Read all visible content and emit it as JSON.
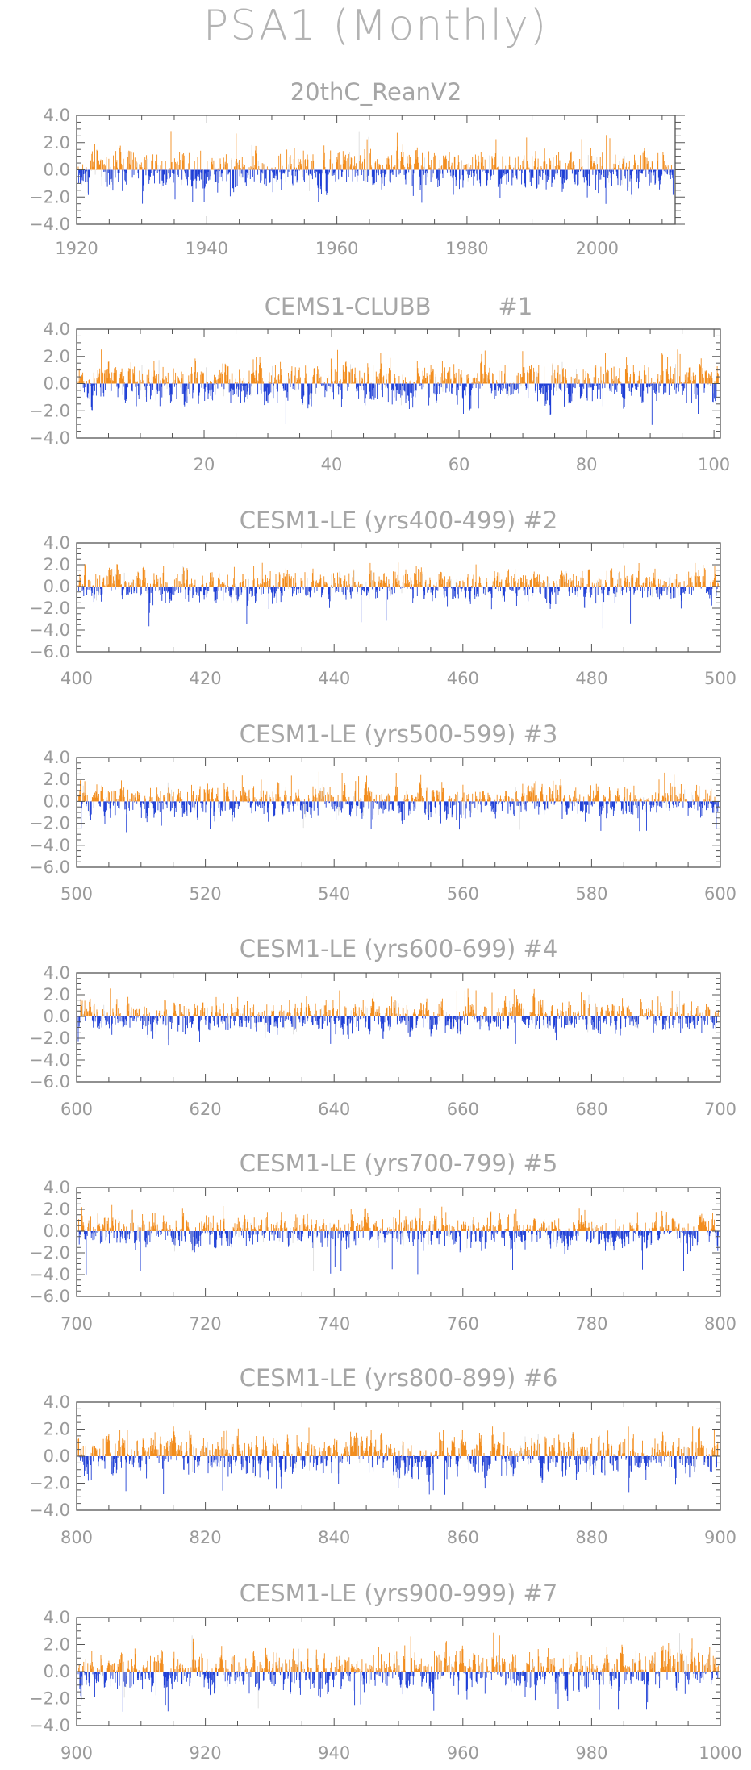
{
  "page": {
    "title": "PSA1 (Monthly)",
    "colors": {
      "positive": "#f28c1c",
      "negative": "#1f3fd6",
      "frame": "#555555",
      "text": "#999999"
    }
  },
  "chart_data": [
    {
      "type": "bar",
      "title": "20thC_ReanV2",
      "xlim": [
        1920,
        2012
      ],
      "ylim": [
        -4,
        4
      ],
      "xticks": [
        1920,
        1940,
        1960,
        1980,
        2000
      ],
      "yticks": [
        -4,
        -2,
        0,
        2,
        4
      ],
      "ytick_labels": [
        "−4.0",
        "−2.0",
        "0.0",
        "2.0",
        "4.0"
      ],
      "approx_peak": 2.8,
      "approx_trough": -2.7
    },
    {
      "type": "bar",
      "title": "CEMS1-CLUBB         #1",
      "xlim": [
        0,
        101
      ],
      "ylim": [
        -4,
        4
      ],
      "xticks": [
        20,
        40,
        60,
        80,
        100
      ],
      "yticks": [
        -4,
        -2,
        0,
        2,
        4
      ],
      "ytick_labels": [
        "−4.0",
        "−2.0",
        "0.0",
        "2.0",
        "4.0"
      ],
      "approx_peak": 2.6,
      "approx_trough": -3.3
    },
    {
      "type": "bar",
      "title": "CESM1-LE (yrs400-499) #2",
      "xlim": [
        400,
        500
      ],
      "ylim": [
        -6,
        4
      ],
      "xticks": [
        400,
        420,
        440,
        460,
        480,
        500
      ],
      "yticks": [
        -6,
        -4,
        -2,
        0,
        2,
        4
      ],
      "ytick_labels": [
        "−6.0",
        "−4.0",
        "−2.0",
        "0.0",
        "2.0",
        "4.0"
      ],
      "approx_peak": 2.3,
      "approx_trough": -3.9
    },
    {
      "type": "bar",
      "title": "CESM1-LE (yrs500-599) #3",
      "xlim": [
        500,
        600
      ],
      "ylim": [
        -6,
        4
      ],
      "xticks": [
        500,
        520,
        540,
        560,
        580,
        600
      ],
      "yticks": [
        -6,
        -4,
        -2,
        0,
        2,
        4
      ],
      "ytick_labels": [
        "−6.0",
        "−4.0",
        "−2.0",
        "0.0",
        "2.0",
        "4.0"
      ],
      "approx_peak": 2.7,
      "approx_trough": -3.0
    },
    {
      "type": "bar",
      "title": "CESM1-LE (yrs600-699) #4",
      "xlim": [
        600,
        700
      ],
      "ylim": [
        -6,
        4
      ],
      "xticks": [
        600,
        620,
        640,
        660,
        680,
        700
      ],
      "yticks": [
        -6,
        -4,
        -2,
        0,
        2,
        4
      ],
      "ytick_labels": [
        "−6.0",
        "−4.0",
        "−2.0",
        "0.0",
        "2.0",
        "4.0"
      ],
      "approx_peak": 2.6,
      "approx_trough": -2.6
    },
    {
      "type": "bar",
      "title": "CESM1-LE (yrs700-799) #5",
      "xlim": [
        700,
        800
      ],
      "ylim": [
        -6,
        4
      ],
      "xticks": [
        700,
        720,
        740,
        760,
        780,
        800
      ],
      "yticks": [
        -6,
        -4,
        -2,
        0,
        2,
        4
      ],
      "ytick_labels": [
        "−6.0",
        "−4.0",
        "−2.0",
        "0.0",
        "2.0",
        "4.0"
      ],
      "approx_peak": 2.4,
      "approx_trough": -4.0
    },
    {
      "type": "bar",
      "title": "CESM1-LE (yrs800-899) #6",
      "xlim": [
        800,
        900
      ],
      "ylim": [
        -4,
        4
      ],
      "xticks": [
        800,
        820,
        840,
        860,
        880,
        900
      ],
      "yticks": [
        -4,
        -2,
        0,
        2,
        4
      ],
      "ytick_labels": [
        "−4.0",
        "−2.0",
        "0.0",
        "2.0",
        "4.0"
      ],
      "approx_peak": 2.2,
      "approx_trough": -2.9
    },
    {
      "type": "bar",
      "title": "CESM1-LE (yrs900-999) #7",
      "xlim": [
        900,
        1000
      ],
      "ylim": [
        -4,
        4
      ],
      "xticks": [
        900,
        920,
        940,
        960,
        980,
        1000
      ],
      "yticks": [
        -4,
        -2,
        0,
        2,
        4
      ],
      "ytick_labels": [
        "−4.0",
        "−2.0",
        "0.0",
        "2.0",
        "4.0"
      ],
      "approx_peak": 2.9,
      "approx_trough": -3.0
    }
  ]
}
